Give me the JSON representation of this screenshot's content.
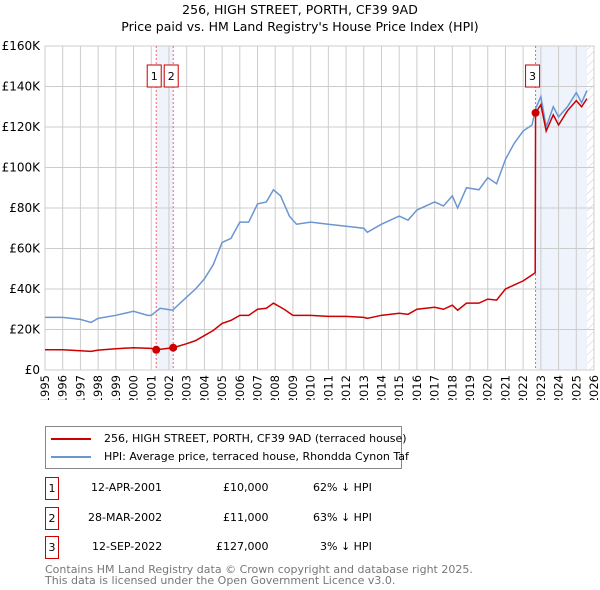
{
  "chart_data": {
    "type": "line",
    "title": "256, HIGH STREET, PORTH, CF39 9AD",
    "subtitle": "Price paid vs. HM Land Registry's House Price Index (HPI)",
    "xlim": [
      1995,
      2026
    ],
    "ylim": [
      0,
      160000
    ],
    "x_ticks": [
      "1995",
      "1996",
      "1997",
      "1998",
      "1999",
      "2000",
      "2001",
      "2002",
      "2003",
      "2004",
      "2005",
      "2006",
      "2007",
      "2008",
      "2009",
      "2010",
      "2011",
      "2012",
      "2013",
      "2014",
      "2015",
      "2016",
      "2017",
      "2018",
      "2019",
      "2020",
      "2021",
      "2022",
      "2023",
      "2024",
      "2025",
      "2026"
    ],
    "y_ticks": [
      {
        "v": 0,
        "label": "£0"
      },
      {
        "v": 20000,
        "label": "£20K"
      },
      {
        "v": 40000,
        "label": "£40K"
      },
      {
        "v": 60000,
        "label": "£60K"
      },
      {
        "v": 80000,
        "label": "£80K"
      },
      {
        "v": 100000,
        "label": "£100K"
      },
      {
        "v": 120000,
        "label": "£120K"
      },
      {
        "v": 140000,
        "label": "£140K"
      },
      {
        "v": 160000,
        "label": "£160K"
      }
    ],
    "grid": true,
    "series": [
      {
        "name": "256, HIGH STREET, PORTH, CF39 9AD (terraced house)",
        "color": "#cc0000",
        "x": [
          1995,
          1996,
          1997,
          1997.6,
          1998,
          1999,
          2000,
          2001,
          2001.28,
          2002.24,
          2003,
          2003.5,
          2004,
          2004.5,
          2005,
          2005.5,
          2006,
          2006.5,
          2007,
          2007.5,
          2007.9,
          2008.5,
          2009,
          2010,
          2011,
          2012,
          2013,
          2013.2,
          2014,
          2015,
          2015.5,
          2016,
          2017,
          2017.5,
          2018,
          2018.3,
          2018.8,
          2019.5,
          2020,
          2020.5,
          2021,
          2021.5,
          2022,
          2022.68,
          2022.7,
          2023,
          2023.3,
          2023.7,
          2024,
          2024.5,
          2025,
          2025.3,
          2025.6
        ],
        "y": [
          10000,
          10000,
          9500,
          9200,
          9800,
          10500,
          11000,
          10700,
          10000,
          11000,
          13000,
          14500,
          17000,
          19500,
          23000,
          24500,
          27000,
          27000,
          30000,
          30500,
          33000,
          30000,
          27000,
          27000,
          26500,
          26500,
          26000,
          25500,
          27000,
          28000,
          27500,
          30000,
          31000,
          30000,
          32000,
          29500,
          33000,
          33000,
          35000,
          34500,
          40000,
          42000,
          44000,
          48000,
          127000,
          131000,
          118000,
          126000,
          121000,
          128000,
          133000,
          130000,
          134000
        ]
      },
      {
        "name": "HPI: Average price, terraced house, Rhondda Cynon Taf",
        "color": "#6a96d2",
        "x": [
          1995,
          1996,
          1997,
          1997.6,
          1998,
          1999,
          2000,
          2000.8,
          2001,
          2001.5,
          2002.2,
          2003,
          2003.5,
          2004,
          2004.5,
          2005,
          2005.5,
          2006,
          2006.5,
          2007,
          2007.5,
          2007.9,
          2008.3,
          2008.8,
          2009.2,
          2010,
          2011,
          2012,
          2013,
          2013.2,
          2014,
          2015,
          2015.5,
          2016,
          2017,
          2017.5,
          2018,
          2018.3,
          2018.8,
          2019.5,
          2020,
          2020.5,
          2021,
          2021.5,
          2022,
          2022.5,
          2022.7,
          2023,
          2023.3,
          2023.7,
          2024,
          2024.5,
          2025,
          2025.3,
          2025.6
        ],
        "y": [
          26000,
          26000,
          25000,
          23500,
          25500,
          27000,
          29000,
          27000,
          27000,
          30500,
          29500,
          36000,
          40000,
          45000,
          52000,
          63000,
          65000,
          73000,
          73000,
          82000,
          83000,
          89000,
          86000,
          76000,
          72000,
          73000,
          72000,
          71000,
          70000,
          68000,
          72000,
          76000,
          74000,
          79000,
          83000,
          81000,
          86000,
          80000,
          90000,
          89000,
          95000,
          92000,
          104000,
          112000,
          118000,
          121000,
          129000,
          135000,
          120000,
          130000,
          125000,
          130000,
          137000,
          132000,
          138000
        ]
      }
    ],
    "sales": [
      {
        "id": "1",
        "x": 2001.28,
        "y": 10000,
        "date": "12-APR-2001",
        "price": "£10,000",
        "hpi": "62% ↓ HPI"
      },
      {
        "id": "2",
        "x": 2002.24,
        "y": 11000,
        "date": "28-MAR-2002",
        "price": "£11,000",
        "hpi": "63% ↓ HPI"
      },
      {
        "id": "3",
        "x": 2022.7,
        "y": 127000,
        "date": "12-SEP-2022",
        "price": "£127,000",
        "hpi": "3% ↓ HPI"
      }
    ],
    "shaded_ranges": [
      [
        2001.28,
        2002.24
      ],
      [
        2022.7,
        2025.6
      ]
    ],
    "forecast_hatch_from": 2025.6
  },
  "footer": {
    "line1": "Contains HM Land Registry data © Crown copyright and database right 2025.",
    "line2": "This data is licensed under the Open Government Licence v3.0."
  }
}
